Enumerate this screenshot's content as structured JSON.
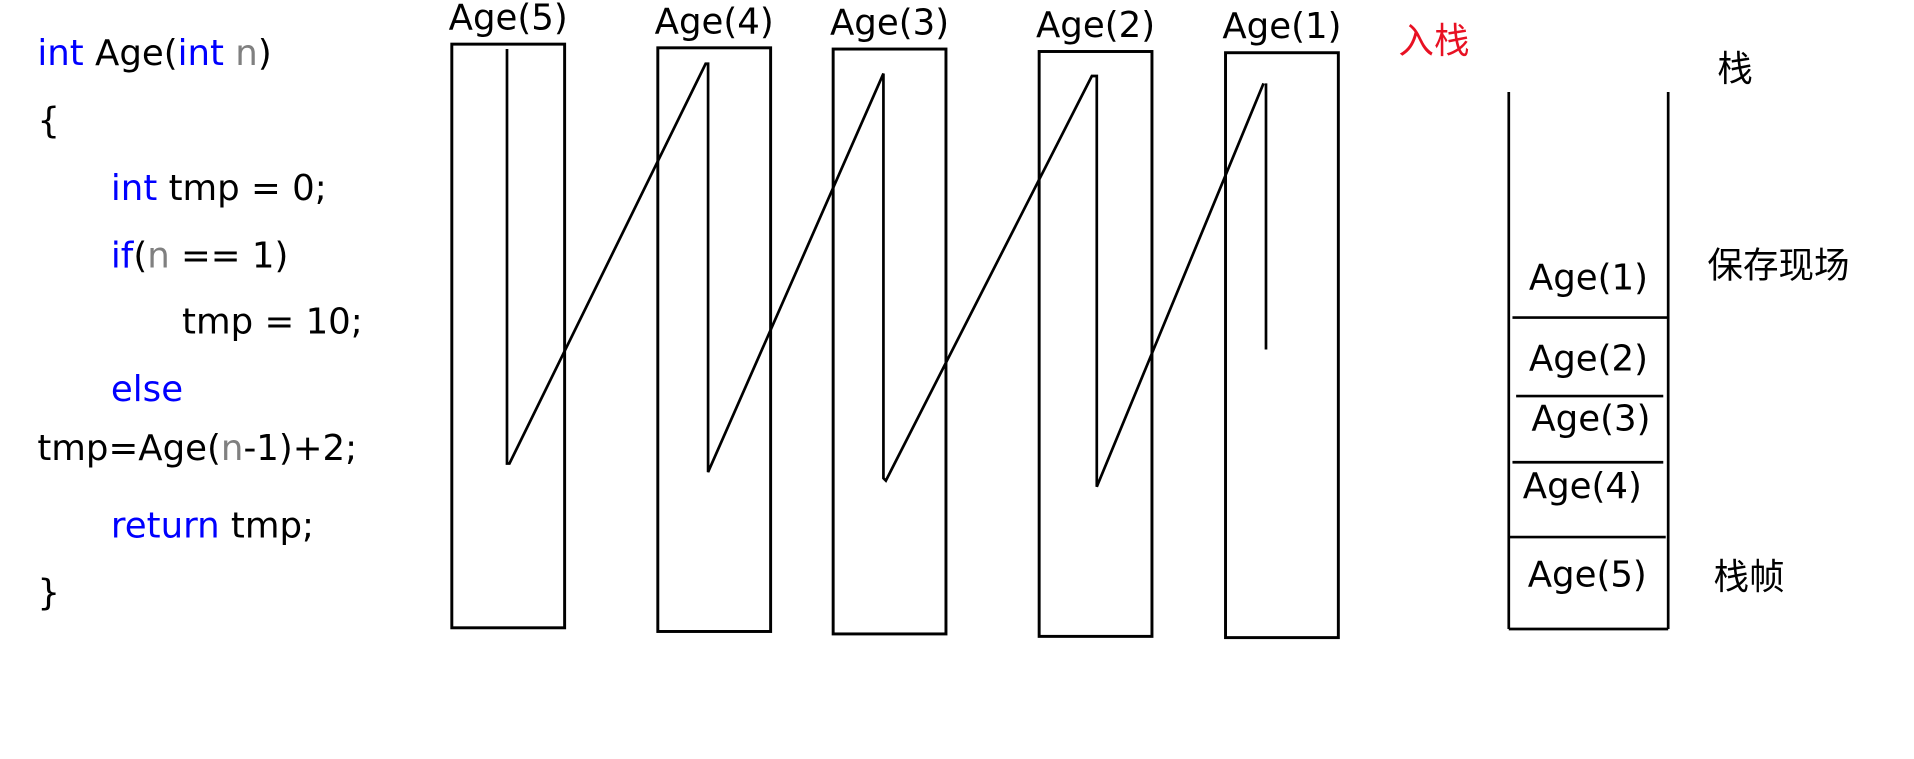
{
  "code": {
    "lines": [
      [
        {
          "text": "int",
          "color": "#0000ff"
        },
        {
          "text": " Age(",
          "color": "#000000"
        },
        {
          "text": "int",
          "color": "#0000ff"
        },
        {
          "text": " n",
          "color": "#808080"
        },
        {
          "text": ")",
          "color": "#000000"
        }
      ],
      [
        {
          "text": "{",
          "color": "#000000"
        }
      ],
      [
        {
          "text": "int",
          "color": "#0000ff"
        },
        {
          "text": " tmp = 0;",
          "color": "#000000"
        }
      ],
      [
        {
          "text": "if",
          "color": "#0000ff"
        },
        {
          "text": "(",
          "color": "#000000"
        },
        {
          "text": "n",
          "color": "#808080"
        },
        {
          "text": " == 1)",
          "color": "#000000"
        }
      ],
      [
        {
          "text": "tmp = 10;",
          "color": "#000000"
        }
      ],
      [
        {
          "text": "else",
          "color": "#0000ff"
        }
      ],
      [
        {
          "text": "tmp=Age(",
          "color": "#000000"
        },
        {
          "text": "n",
          "color": "#808080"
        },
        {
          "text": "-1)+2;",
          "color": "#000000"
        }
      ],
      [
        {
          "text": "return",
          "color": "#0000ff"
        },
        {
          "text": " tmp;",
          "color": "#000000"
        }
      ],
      [
        {
          "text": "}",
          "color": "#000000"
        }
      ]
    ]
  },
  "frames": [
    {
      "label": "Age(5)"
    },
    {
      "label": "Age(4)"
    },
    {
      "label": "Age(3)"
    },
    {
      "label": "Age(2)"
    },
    {
      "label": "Age(1)"
    }
  ],
  "stack": {
    "items": [
      "Age(1)",
      "Age(2)",
      "Age(3)",
      "Age(4)",
      "Age(5)"
    ]
  },
  "labels": {
    "push": {
      "text": "入栈",
      "color": "#e81123"
    },
    "stack": "栈",
    "save": "保存现场",
    "frame": "栈帧"
  }
}
